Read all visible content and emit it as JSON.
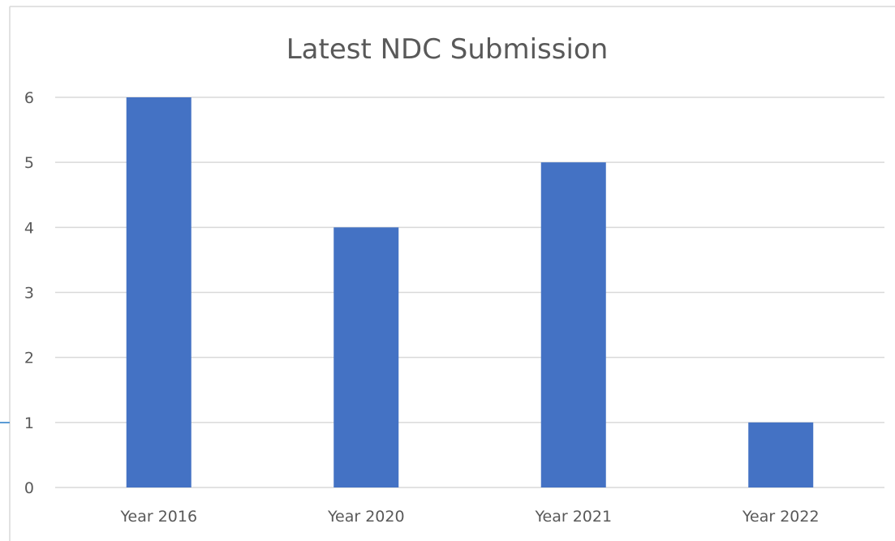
{
  "chart_data": {
    "type": "bar",
    "title": "Latest NDC Submission",
    "xlabel": "",
    "ylabel": "",
    "categories": [
      "Year 2016",
      "Year 2020",
      "Year 2021",
      "Year 2022"
    ],
    "values": [
      6,
      4,
      5,
      1
    ],
    "ylim": [
      0,
      6
    ],
    "yticks": [
      "0",
      "1",
      "2",
      "3",
      "4",
      "5",
      "6"
    ],
    "grid": true,
    "legend": "none",
    "colors": {
      "bar": "#4472c4",
      "gridline": "#d9d9d9",
      "text": "#595959",
      "frame": "#d9d9d9",
      "accent_line": "#5b9bd5"
    }
  }
}
